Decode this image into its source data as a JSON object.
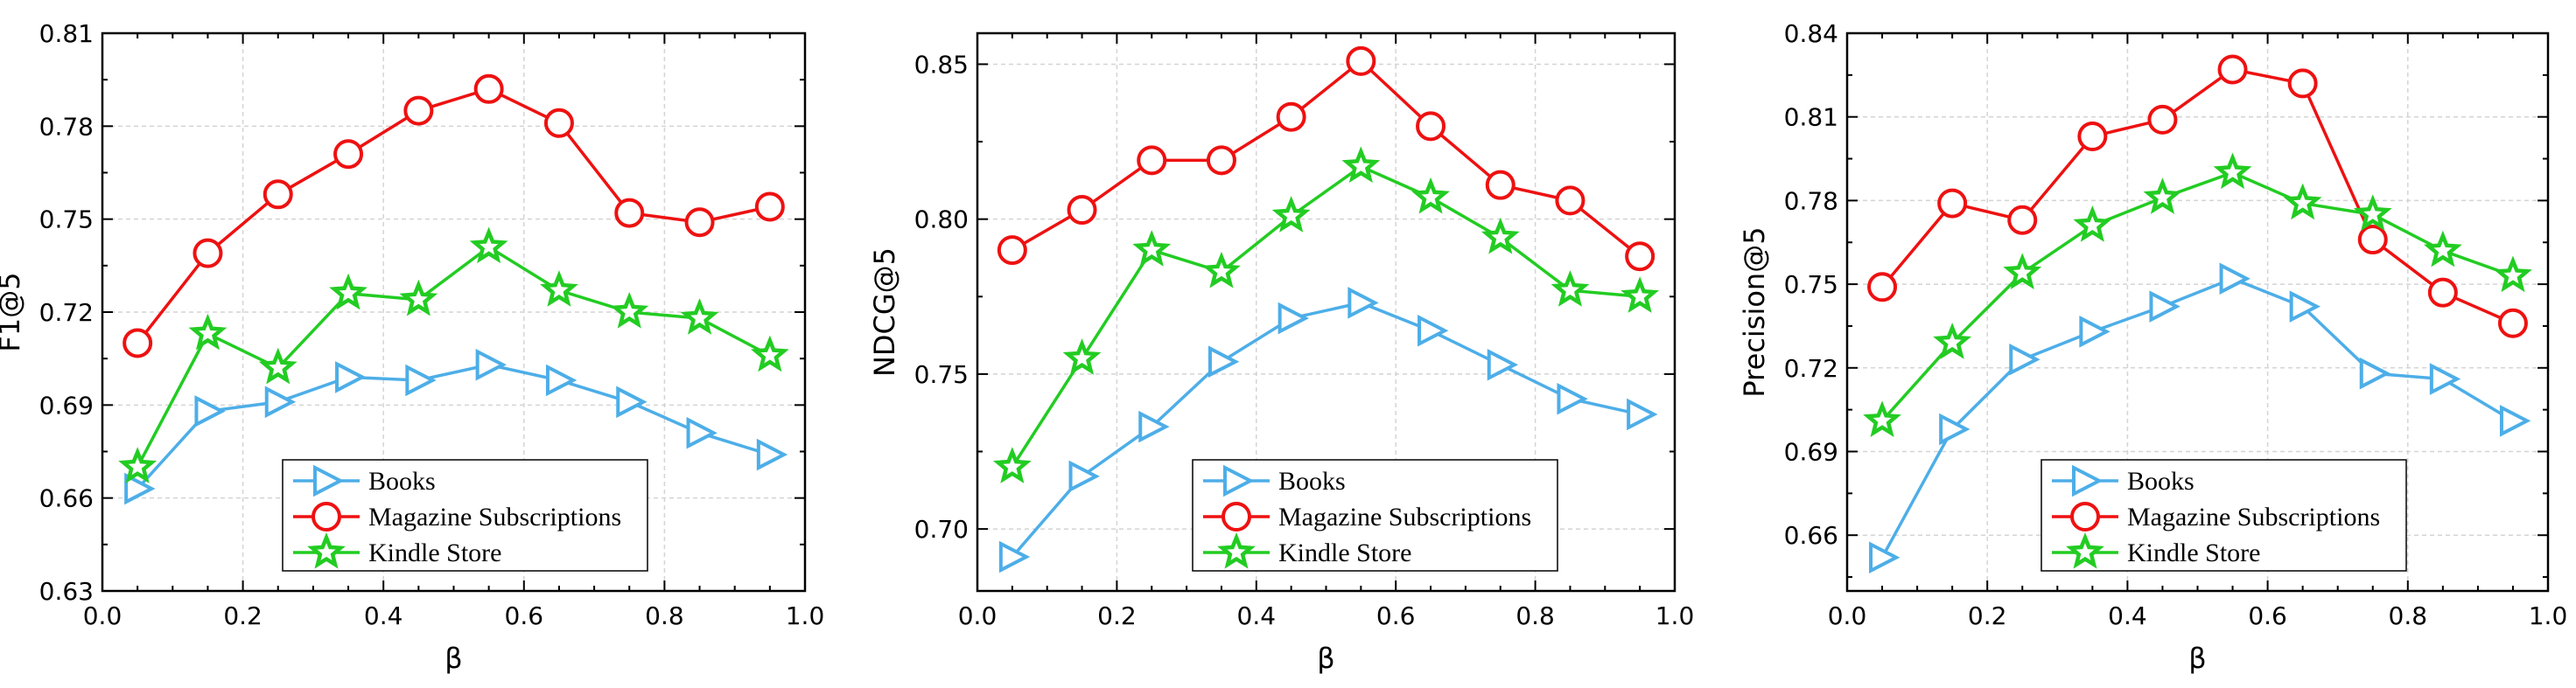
{
  "chart_data": [
    {
      "type": "line",
      "xlabel": "β",
      "ylabel": "F1@5",
      "xlim": [
        0.0,
        1.0
      ],
      "ylim": [
        0.63,
        0.81
      ],
      "xticks": [
        0.0,
        0.2,
        0.4,
        0.6,
        0.8,
        1.0
      ],
      "xtick_labels": [
        "0.0",
        "0.2",
        "0.4",
        "0.6",
        "0.8",
        "1.0"
      ],
      "yticks": [
        0.63,
        0.66,
        0.69,
        0.72,
        0.75,
        0.78,
        0.81
      ],
      "ytick_labels": [
        "0.63",
        "0.66",
        "0.69",
        "0.72",
        "0.75",
        "0.78",
        "0.81"
      ],
      "grid": true,
      "legend_position": "bottom-center",
      "x": [
        0.05,
        0.15,
        0.25,
        0.35,
        0.45,
        0.55,
        0.65,
        0.75,
        0.85,
        0.95
      ],
      "series": [
        {
          "name": "Books",
          "color": "#4daee8",
          "marker": "triangle-right",
          "values": [
            0.663,
            0.688,
            0.691,
            0.699,
            0.698,
            0.703,
            0.698,
            0.691,
            0.681,
            0.674
          ]
        },
        {
          "name": "Magazine Subscriptions",
          "color": "#ee1111",
          "marker": "circle",
          "values": [
            0.71,
            0.739,
            0.758,
            0.771,
            0.785,
            0.792,
            0.781,
            0.752,
            0.749,
            0.754
          ]
        },
        {
          "name": "Kindle Store",
          "color": "#22cc22",
          "marker": "star",
          "values": [
            0.67,
            0.713,
            0.702,
            0.726,
            0.724,
            0.741,
            0.727,
            0.72,
            0.718,
            0.706
          ]
        }
      ]
    },
    {
      "type": "line",
      "xlabel": "β",
      "ylabel": "NDCG@5",
      "xlim": [
        0.0,
        1.0
      ],
      "ylim": [
        0.68,
        0.86
      ],
      "xticks": [
        0.0,
        0.2,
        0.4,
        0.6,
        0.8,
        1.0
      ],
      "xtick_labels": [
        "0.0",
        "0.2",
        "0.4",
        "0.6",
        "0.8",
        "1.0"
      ],
      "yticks": [
        0.7,
        0.75,
        0.8,
        0.85
      ],
      "ytick_labels": [
        "0.70",
        "0.75",
        "0.80",
        "0.85"
      ],
      "grid": true,
      "legend_position": "bottom-center",
      "x": [
        0.05,
        0.15,
        0.25,
        0.35,
        0.45,
        0.55,
        0.65,
        0.75,
        0.85,
        0.95
      ],
      "series": [
        {
          "name": "Books",
          "color": "#4daee8",
          "marker": "triangle-right",
          "values": [
            0.691,
            0.717,
            0.733,
            0.754,
            0.768,
            0.773,
            0.764,
            0.753,
            0.742,
            0.737
          ]
        },
        {
          "name": "Magazine Subscriptions",
          "color": "#ee1111",
          "marker": "circle",
          "values": [
            0.79,
            0.803,
            0.819,
            0.819,
            0.833,
            0.851,
            0.83,
            0.811,
            0.806,
            0.788
          ]
        },
        {
          "name": "Kindle Store",
          "color": "#22cc22",
          "marker": "star",
          "values": [
            0.72,
            0.755,
            0.79,
            0.783,
            0.801,
            0.817,
            0.807,
            0.794,
            0.777,
            0.775
          ]
        }
      ]
    },
    {
      "type": "line",
      "xlabel": "β",
      "ylabel": "Precision@5",
      "xlim": [
        0.0,
        1.0
      ],
      "ylim": [
        0.64,
        0.84
      ],
      "xticks": [
        0.0,
        0.2,
        0.4,
        0.6,
        0.8,
        1.0
      ],
      "xtick_labels": [
        "0.0",
        "0.2",
        "0.4",
        "0.6",
        "0.8",
        "1.0"
      ],
      "yticks": [
        0.66,
        0.69,
        0.72,
        0.75,
        0.78,
        0.81,
        0.84
      ],
      "ytick_labels": [
        "0.66",
        "0.69",
        "0.72",
        "0.75",
        "0.78",
        "0.81",
        "0.84"
      ],
      "grid": true,
      "legend_position": "bottom-center",
      "x": [
        0.05,
        0.15,
        0.25,
        0.35,
        0.45,
        0.55,
        0.65,
        0.75,
        0.85,
        0.95
      ],
      "series": [
        {
          "name": "Books",
          "color": "#4daee8",
          "marker": "triangle-right",
          "values": [
            0.652,
            0.698,
            0.723,
            0.733,
            0.742,
            0.752,
            0.742,
            0.718,
            0.716,
            0.701
          ]
        },
        {
          "name": "Magazine Subscriptions",
          "color": "#ee1111",
          "marker": "circle",
          "values": [
            0.749,
            0.779,
            0.773,
            0.803,
            0.809,
            0.827,
            0.822,
            0.766,
            0.747,
            0.736
          ]
        },
        {
          "name": "Kindle Store",
          "color": "#22cc22",
          "marker": "star",
          "values": [
            0.701,
            0.729,
            0.754,
            0.771,
            0.781,
            0.79,
            0.779,
            0.775,
            0.762,
            0.753
          ]
        }
      ]
    }
  ]
}
